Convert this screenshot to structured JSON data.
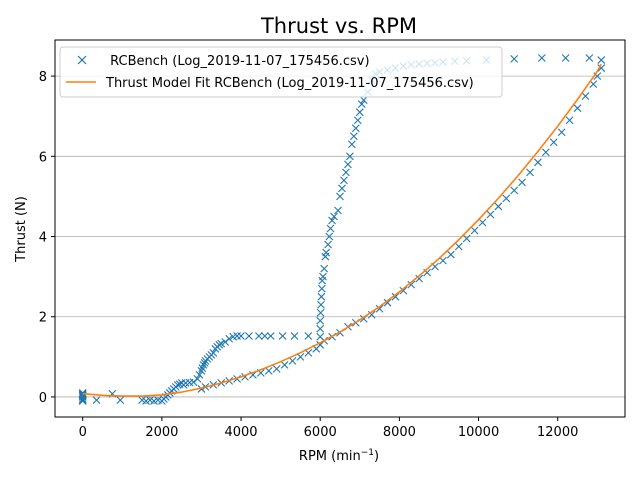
{
  "chart_data": {
    "type": "scatter",
    "title": "Thrust vs. RPM",
    "xlabel": "RPM (min",
    "xlabel_sup": "−1",
    "xlabel_suffix": ")",
    "ylabel": "Thrust (N)",
    "xlim": [
      -700,
      13700
    ],
    "ylim": [
      -0.5,
      8.9
    ],
    "xticks": [
      0,
      2000,
      4000,
      6000,
      8000,
      10000,
      12000
    ],
    "yticks": [
      0,
      2,
      4,
      6,
      8
    ],
    "ytick_labels": [
      "0",
      "2",
      "4",
      "6",
      "8"
    ],
    "grid": "horizontal",
    "legend_position": "top-left",
    "colors": {
      "scatter": "#1f77b4",
      "fit": "#ff7f0e"
    },
    "series": [
      {
        "name": " RCBench (Log_2019-11-07_175456.csv)",
        "kind": "scatter",
        "marker": "x",
        "points": [
          [
            0,
            0.1
          ],
          [
            0,
            0.05
          ],
          [
            0,
            0.0
          ],
          [
            0,
            -0.05
          ],
          [
            0,
            -0.1
          ],
          [
            0,
            0.07
          ],
          [
            0,
            -0.08
          ],
          [
            0,
            0.03
          ],
          [
            350,
            -0.08
          ],
          [
            750,
            0.08
          ],
          [
            950,
            -0.08
          ],
          [
            1500,
            -0.08
          ],
          [
            1600,
            -0.1
          ],
          [
            1700,
            -0.08
          ],
          [
            1800,
            -0.1
          ],
          [
            1900,
            -0.08
          ],
          [
            2000,
            -0.1
          ],
          [
            2050,
            -0.05
          ],
          [
            2100,
            0.0
          ],
          [
            2150,
            0.05
          ],
          [
            2200,
            0.1
          ],
          [
            2250,
            0.15
          ],
          [
            2300,
            0.2
          ],
          [
            2350,
            0.25
          ],
          [
            2400,
            0.3
          ],
          [
            2450,
            0.32
          ],
          [
            2500,
            0.35
          ],
          [
            2550,
            0.3
          ],
          [
            2600,
            0.35
          ],
          [
            2700,
            0.36
          ],
          [
            2800,
            0.37
          ],
          [
            2900,
            0.45
          ],
          [
            2950,
            0.55
          ],
          [
            3000,
            0.65
          ],
          [
            3020,
            0.72
          ],
          [
            3050,
            0.8
          ],
          [
            3080,
            0.85
          ],
          [
            3100,
            0.9
          ],
          [
            3150,
            0.95
          ],
          [
            3200,
            1.0
          ],
          [
            3250,
            1.05
          ],
          [
            3300,
            1.1
          ],
          [
            3350,
            1.2
          ],
          [
            3400,
            1.25
          ],
          [
            3450,
            1.3
          ],
          [
            3500,
            1.33
          ],
          [
            3600,
            1.37
          ],
          [
            3700,
            1.45
          ],
          [
            3800,
            1.5
          ],
          [
            3900,
            1.52
          ],
          [
            4000,
            1.52
          ],
          [
            4200,
            1.52
          ],
          [
            4450,
            1.52
          ],
          [
            4600,
            1.52
          ],
          [
            4750,
            1.52
          ],
          [
            5050,
            1.52
          ],
          [
            5350,
            1.52
          ],
          [
            5700,
            1.52
          ],
          [
            3000,
            0.2
          ],
          [
            3100,
            0.25
          ],
          [
            3300,
            0.3
          ],
          [
            3500,
            0.35
          ],
          [
            3700,
            0.4
          ],
          [
            3900,
            0.45
          ],
          [
            4100,
            0.5
          ],
          [
            4300,
            0.55
          ],
          [
            4500,
            0.6
          ],
          [
            4700,
            0.65
          ],
          [
            4900,
            0.7
          ],
          [
            5100,
            0.8
          ],
          [
            5300,
            0.9
          ],
          [
            5500,
            1.0
          ],
          [
            5700,
            1.1
          ],
          [
            5900,
            1.2
          ],
          [
            6000,
            1.3
          ],
          [
            6000,
            1.5
          ],
          [
            6000,
            1.7
          ],
          [
            6000,
            1.9
          ],
          [
            6010,
            2.1
          ],
          [
            6020,
            2.3
          ],
          [
            6030,
            2.5
          ],
          [
            6040,
            2.7
          ],
          [
            6050,
            2.9
          ],
          [
            6070,
            3.0
          ],
          [
            6100,
            3.2
          ],
          [
            6130,
            3.5
          ],
          [
            6150,
            3.6
          ],
          [
            6200,
            3.8
          ],
          [
            6230,
            4.0
          ],
          [
            6260,
            4.2
          ],
          [
            6300,
            4.4
          ],
          [
            6350,
            4.5
          ],
          [
            6450,
            4.65
          ],
          [
            6500,
            5.0
          ],
          [
            6550,
            5.2
          ],
          [
            6600,
            5.4
          ],
          [
            6650,
            5.6
          ],
          [
            6700,
            5.8
          ],
          [
            6750,
            6.0
          ],
          [
            6800,
            6.3
          ],
          [
            6850,
            6.5
          ],
          [
            6900,
            6.7
          ],
          [
            6950,
            6.9
          ],
          [
            7000,
            7.1
          ],
          [
            7050,
            7.3
          ],
          [
            7100,
            7.4
          ],
          [
            7200,
            7.6
          ],
          [
            7300,
            7.9
          ],
          [
            7400,
            8.05
          ],
          [
            7500,
            8.1
          ],
          [
            7700,
            8.15
          ],
          [
            7900,
            8.2
          ],
          [
            8100,
            8.25
          ],
          [
            8300,
            8.28
          ],
          [
            8500,
            8.3
          ],
          [
            8700,
            8.32
          ],
          [
            8900,
            8.33
          ],
          [
            9100,
            8.35
          ],
          [
            9400,
            8.37
          ],
          [
            9700,
            8.38
          ],
          [
            10200,
            8.4
          ],
          [
            10900,
            8.43
          ],
          [
            11600,
            8.45
          ],
          [
            12200,
            8.45
          ],
          [
            12800,
            8.45
          ],
          [
            6100,
            1.4
          ],
          [
            6300,
            1.5
          ],
          [
            6500,
            1.6
          ],
          [
            6700,
            1.75
          ],
          [
            6900,
            1.85
          ],
          [
            7100,
            1.95
          ],
          [
            7300,
            2.05
          ],
          [
            7500,
            2.2
          ],
          [
            7700,
            2.35
          ],
          [
            7900,
            2.5
          ],
          [
            8100,
            2.65
          ],
          [
            8300,
            2.8
          ],
          [
            8500,
            2.95
          ],
          [
            8700,
            3.1
          ],
          [
            8900,
            3.25
          ],
          [
            9100,
            3.4
          ],
          [
            9300,
            3.55
          ],
          [
            9500,
            3.75
          ],
          [
            9700,
            3.95
          ],
          [
            9900,
            4.15
          ],
          [
            10100,
            4.35
          ],
          [
            10300,
            4.55
          ],
          [
            10500,
            4.75
          ],
          [
            10700,
            4.95
          ],
          [
            10900,
            5.15
          ],
          [
            11100,
            5.35
          ],
          [
            11300,
            5.6
          ],
          [
            11500,
            5.85
          ],
          [
            11700,
            6.1
          ],
          [
            11900,
            6.35
          ],
          [
            12100,
            6.6
          ],
          [
            12300,
            6.9
          ],
          [
            12500,
            7.2
          ],
          [
            12700,
            7.5
          ],
          [
            12900,
            7.8
          ],
          [
            13000,
            8.0
          ],
          [
            13100,
            8.2
          ],
          [
            13100,
            8.4
          ]
        ]
      },
      {
        "name": "Thrust Model Fit RCBench (Log_2019-11-07_175456.csv)",
        "kind": "line",
        "x": [
          0,
          500,
          1000,
          1500,
          2000,
          2500,
          3000,
          3500,
          4000,
          4500,
          5000,
          5500,
          6000,
          6500,
          7000,
          7500,
          8000,
          8500,
          9000,
          9500,
          10000,
          10500,
          11000,
          11500,
          12000,
          12500,
          13000,
          13100
        ],
        "y": [
          0.08,
          0.04,
          0.02,
          0.02,
          0.05,
          0.12,
          0.22,
          0.35,
          0.5,
          0.68,
          0.88,
          1.1,
          1.35,
          1.62,
          1.92,
          2.25,
          2.62,
          3.02,
          3.45,
          3.92,
          4.42,
          4.95,
          5.52,
          6.12,
          6.75,
          7.42,
          8.12,
          8.3
        ]
      }
    ]
  }
}
